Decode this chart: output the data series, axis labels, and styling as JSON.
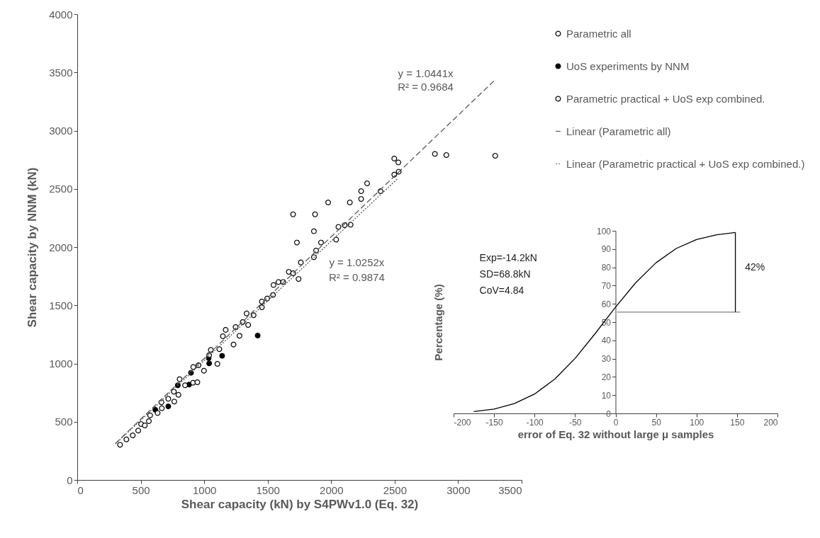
{
  "chart_data": [
    {
      "type": "scatter",
      "xlabel": "Shear capacity (kN) by S4PWv1.0 (Eq. 32)",
      "ylabel": "Shear capacity by NNM (kN)",
      "xlim": [
        0,
        3500
      ],
      "ylim": [
        0,
        4000
      ],
      "xticks": [
        0,
        500,
        1000,
        1500,
        2000,
        2500,
        3000,
        3500
      ],
      "yticks": [
        0,
        500,
        1000,
        1500,
        2000,
        2500,
        3000,
        3500,
        4000
      ],
      "grid": false,
      "legend": "top right",
      "series": [
        {
          "name": "Parametric all",
          "color": "#ffffff",
          "marker": "circle",
          "x": [
            1700,
            1873,
            1976,
            1864,
            1730,
            2147,
            2907,
            3292
          ],
          "values": [
            2281,
            2281,
            2383,
            2136,
            2039,
            2383,
            2790,
            2784
          ]
        },
        {
          "name": "UoS experiments by NNM",
          "color": "#000000",
          "marker": "circle",
          "x": [
            615,
            717,
            792,
            881,
            896,
            1035,
            1039,
            1141,
            1421
          ],
          "values": [
            602,
            632,
            813,
            819,
            920,
            1046,
            1001,
            1066,
            1240
          ]
        },
        {
          "name": "Parametric practical + UoS exp combined.",
          "color": "#ffffff",
          "marker": "circle",
          "x": [
            337,
            387,
            437,
            480,
            503,
            532,
            564,
            574,
            633,
            666,
            663,
            717,
            764,
            761,
            797,
            806,
            849,
            912,
            946,
            914,
            955,
            998,
            1052,
            1039,
            1104,
            1119,
            1147,
            1169,
            1231,
            1278,
            1247,
            1303,
            1346,
            1334,
            1389,
            1454,
            1454,
            1496,
            1542,
            1546,
            1585,
            1622,
            1666,
            1700,
            1743,
            1761,
            1864,
            1881,
            1920,
            2039,
            2057,
            2106,
            2153,
            2236,
            2236,
            2389,
            2283,
            2497,
            2532,
            2497,
            2529,
            2817
          ],
          "values": [
            302,
            348,
            383,
            424,
            480,
            468,
            505,
            555,
            575,
            616,
            667,
            697,
            673,
            758,
            731,
            865,
            813,
            835,
            839,
            970,
            985,
            938,
            1117,
            1072,
            997,
            1123,
            1234,
            1289,
            1163,
            1238,
            1313,
            1356,
            1331,
            1430,
            1415,
            1483,
            1532,
            1558,
            1589,
            1674,
            1700,
            1700,
            1787,
            1775,
            1726,
            1868,
            1913,
            1970,
            2039,
            2064,
            2173,
            2188,
            2192,
            2413,
            2480,
            2480,
            2547,
            2622,
            2647,
            2760,
            2727,
            2800
          ]
        },
        {
          "type": "line",
          "name": "Linear (Parametric all)",
          "color": "#595959",
          "marker": "none",
          "line_style": "dashed",
          "x": [
            300,
            3290
          ],
          "values": [
            313,
            3435
          ]
        },
        {
          "type": "line",
          "name": "Linear (Parametric practical + UoS exp combined.)",
          "color": "#595959",
          "marker": "none",
          "line_style": "dotted",
          "x": [
            300,
            2525
          ],
          "values": [
            308,
            2589
          ]
        }
      ],
      "annotations": [
        "y = 1.0441x",
        "R² = 0.9684",
        "y = 1.0252x",
        "R² = 0.9874"
      ]
    },
    {
      "type": "line",
      "xlabel": "error of Eq. 32 without large μ samples",
      "ylabel": "Percentage (%)",
      "xlim": [
        -200,
        200
      ],
      "ylim": [
        0,
        100
      ],
      "xticks": [
        -200,
        -150,
        -100,
        -50,
        0,
        50,
        100,
        150,
        200
      ],
      "yticks": [
        0,
        10,
        20,
        30,
        40,
        50,
        60,
        70,
        80,
        90,
        100
      ],
      "grid": false,
      "marker": "none",
      "series": [
        {
          "color": "#000000",
          "x": [
            -175,
            -150,
            -125,
            -100,
            -75,
            -50,
            -25,
            0,
            25,
            50,
            75,
            100,
            125,
            148
          ],
          "values": [
            1.0,
            2.4,
            5.4,
            10.6,
            18.8,
            30.1,
            43.8,
            58.2,
            71.6,
            82.5,
            90.3,
            95.2,
            97.8,
            99.1
          ]
        },
        {
          "color": "#808080",
          "x": [
            2,
            154
          ],
          "values": [
            55.5,
            55.5
          ]
        },
        {
          "color": "#000000",
          "x": [
            148,
            148
          ],
          "values": [
            55.5,
            99.1
          ]
        }
      ],
      "annotations": [
        "Exp=-14.2kN",
        "SD=68.8kN",
        "CoV=4.84",
        "42%"
      ]
    }
  ]
}
